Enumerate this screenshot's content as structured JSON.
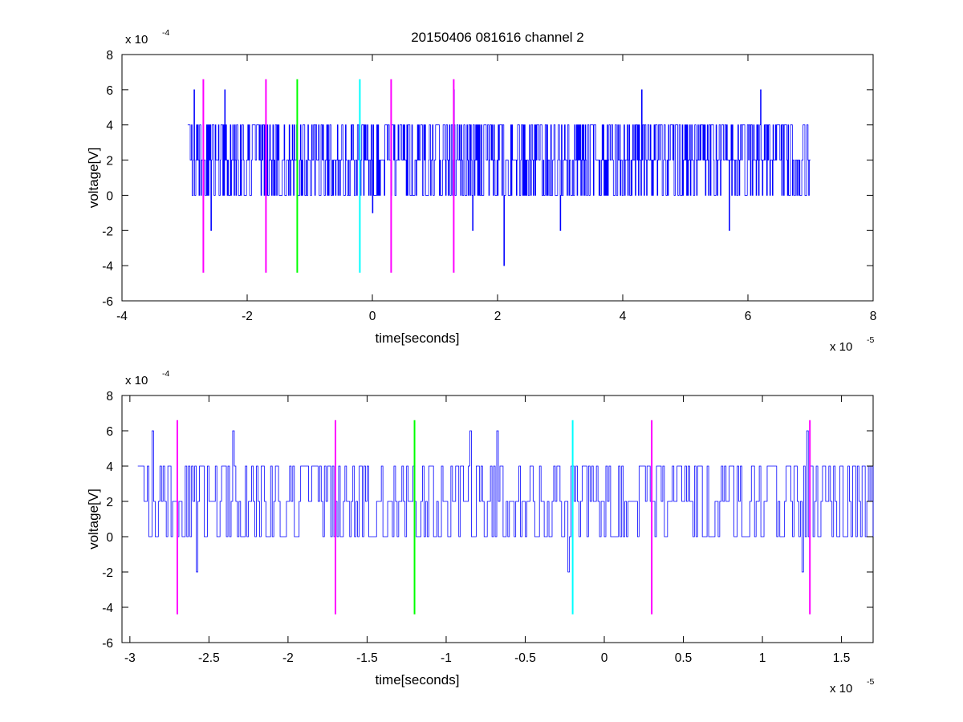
{
  "figure_title": "20150406 081616 channel 2",
  "chart_data": [
    {
      "type": "line",
      "title": "20150406 081616 channel 2",
      "xlabel": "time[seconds]",
      "ylabel": "voltage[V]",
      "x_multiplier": "x 10",
      "x_exponent": "-5",
      "y_multiplier": "x 10",
      "y_exponent": "-4",
      "xlim": [
        -4e-05,
        8e-05
      ],
      "ylim": [
        -0.0006,
        0.0008
      ],
      "xticks": [
        -4e-05,
        -2e-05,
        0,
        2e-05,
        4e-05,
        6e-05,
        8e-05
      ],
      "xtick_labels": [
        "-4",
        "-2",
        "0",
        "2",
        "4",
        "6",
        "8"
      ],
      "yticks": [
        -0.0006,
        -0.0004,
        -0.0002,
        0,
        0.0002,
        0.0004,
        0.0006,
        0.0008
      ],
      "ytick_labels": [
        "-6",
        "-4",
        "-2",
        "0",
        "2",
        "4",
        "6",
        "8"
      ],
      "grid": false,
      "series": [
        {
          "color": "#0000ff",
          "x_start": -2.95e-05,
          "x_end": 7e-05,
          "dt": 1e-07,
          "quant_step": 0.0002,
          "baseline": 0.0002,
          "seed": 20150406,
          "spikes": [
            {
              "x": -2.85e-05,
              "y": 0.0006
            },
            {
              "x": -2.58e-05,
              "y": -0.0002
            },
            {
              "x": -2.36e-05,
              "y": 0.0006
            },
            {
              "x": 0.0,
              "y": -0.0001
            },
            {
              "x": 1.3e-05,
              "y": 0.0006
            },
            {
              "x": 2.1e-05,
              "y": -0.0004
            },
            {
              "x": 4.3e-05,
              "y": 0.0006
            },
            {
              "x": 6.2e-05,
              "y": 0.0006
            },
            {
              "x": 5.7e-05,
              "y": -0.0002
            },
            {
              "x": 3e-05,
              "y": -0.0002
            },
            {
              "x": 1.6e-05,
              "y": -0.0002
            }
          ]
        }
      ],
      "markers": [
        {
          "x": -2.7e-05,
          "color": "#ff00ff",
          "y_range": [
            -0.00044,
            0.00066
          ]
        },
        {
          "x": -1.7e-05,
          "color": "#ff00ff",
          "y_range": [
            -0.00044,
            0.00066
          ]
        },
        {
          "x": -1.2e-05,
          "color": "#00ff00",
          "y_range": [
            -0.00044,
            0.00066
          ]
        },
        {
          "x": -2e-06,
          "color": "#00ffff",
          "y_range": [
            -0.00044,
            0.00066
          ]
        },
        {
          "x": 3e-06,
          "color": "#ff00ff",
          "y_range": [
            -0.00044,
            0.00066
          ]
        },
        {
          "x": 1.3e-05,
          "color": "#ff00ff",
          "y_range": [
            -0.00044,
            0.00066
          ]
        }
      ]
    },
    {
      "type": "line",
      "title": "",
      "xlabel": "time[seconds]",
      "ylabel": "voltage[V]",
      "x_multiplier": "x 10",
      "x_exponent": "-5",
      "y_multiplier": "x 10",
      "y_exponent": "-4",
      "xlim": [
        -3.05e-05,
        1.7e-05
      ],
      "ylim": [
        -0.0006,
        0.0008
      ],
      "xticks": [
        -3e-05,
        -2.5e-05,
        -2e-05,
        -1.5e-05,
        -1e-05,
        -5e-06,
        0,
        5e-06,
        1e-05,
        1.5e-05
      ],
      "xtick_labels": [
        "-3",
        "-2.5",
        "-2",
        "-1.5",
        "-1",
        "-0.5",
        "0",
        "0.5",
        "1",
        "1.5"
      ],
      "yticks": [
        -0.0006,
        -0.0004,
        -0.0002,
        0,
        0.0002,
        0.0004,
        0.0006,
        0.0008
      ],
      "ytick_labels": [
        "-6",
        "-4",
        "-2",
        "0",
        "2",
        "4",
        "6",
        "8"
      ],
      "grid": false,
      "series": [
        {
          "color": "#0000ff",
          "x_start": -2.95e-05,
          "x_end": 1.7e-05,
          "dt": 1e-07,
          "quant_step": 0.0002,
          "baseline": 0.0002,
          "seed": 20150406,
          "spikes": [
            {
              "x": -2.86e-05,
              "y": 0.0006
            },
            {
              "x": -2.58e-05,
              "y": -0.0002
            },
            {
              "x": -2.35e-05,
              "y": 0.0006
            },
            {
              "x": -8.5e-06,
              "y": 0.0006
            },
            {
              "x": -6.8e-06,
              "y": 0.0006
            },
            {
              "x": -2.3e-06,
              "y": -0.0002
            },
            {
              "x": 1.25e-05,
              "y": -0.0002
            },
            {
              "x": 1.28e-05,
              "y": 0.0006
            }
          ]
        }
      ],
      "markers": [
        {
          "x": -2.7e-05,
          "color": "#ff00ff",
          "y_range": [
            -0.00044,
            0.00066
          ]
        },
        {
          "x": -1.7e-05,
          "color": "#ff00ff",
          "y_range": [
            -0.00044,
            0.00066
          ]
        },
        {
          "x": -1.2e-05,
          "color": "#00ff00",
          "y_range": [
            -0.00044,
            0.00066
          ]
        },
        {
          "x": -2e-06,
          "color": "#00ffff",
          "y_range": [
            -0.00044,
            0.00066
          ]
        },
        {
          "x": 3e-06,
          "color": "#ff00ff",
          "y_range": [
            -0.00044,
            0.00066
          ]
        },
        {
          "x": 1.3e-05,
          "color": "#ff00ff",
          "y_range": [
            -0.00044,
            0.00066
          ]
        }
      ]
    }
  ]
}
